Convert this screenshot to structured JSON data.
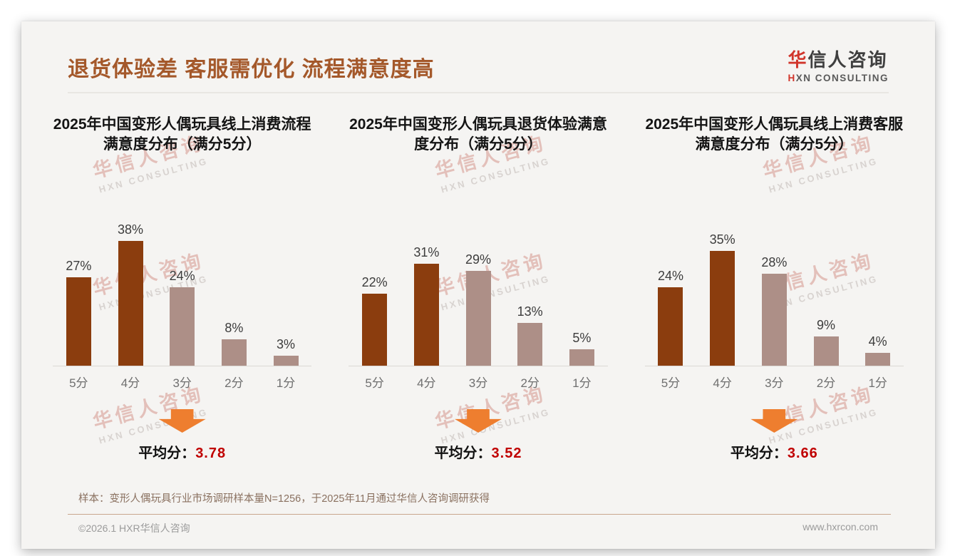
{
  "page": {
    "title": "退货体验差 客服需优化 流程满意度高",
    "logo": {
      "cn_first": "华",
      "cn_rest": "信人咨询",
      "en_first": "H",
      "en_rest": "XN CONSULTING"
    },
    "watermark": {
      "line1": "华信人咨询",
      "line2": "HXN CONSULTING"
    },
    "average_label": "平均分：",
    "footnote": "样本：变形人偶玩具行业市场调研样本量N=1256，于2025年11月通过华信人咨询调研获得",
    "copyright": "©2026.1 HXR华信人咨询",
    "website": "www.hxrcon.com"
  },
  "colors": {
    "title_brown": "#A4582A",
    "bar_dark": "#8B3D0E",
    "bar_light": "#AD8F87",
    "arrow_orange": "#EE7E2F",
    "average_red": "#C00000",
    "logo_red": "#D1352B",
    "card_background": "#F5F4F2"
  },
  "chart_data": [
    {
      "type": "bar",
      "title": "2025年中国变形人偶玩具线上消费流程满意度分布（满分5分）",
      "categories": [
        "5分",
        "4分",
        "3分",
        "2分",
        "1分"
      ],
      "values": [
        27,
        38,
        24,
        8,
        3
      ],
      "unit": "%",
      "ylim": [
        0,
        40
      ],
      "grid": false,
      "bar_styles": [
        "dark",
        "dark",
        "light",
        "light",
        "light"
      ],
      "average": "3.78"
    },
    {
      "type": "bar",
      "title": "2025年中国变形人偶玩具退货体验满意度分布（满分5分）",
      "categories": [
        "5分",
        "4分",
        "3分",
        "2分",
        "1分"
      ],
      "values": [
        22,
        31,
        29,
        13,
        5
      ],
      "unit": "%",
      "ylim": [
        0,
        40
      ],
      "grid": false,
      "bar_styles": [
        "dark",
        "dark",
        "light",
        "light",
        "light"
      ],
      "average": "3.52"
    },
    {
      "type": "bar",
      "title": "2025年中国变形人偶玩具线上消费客服满意度分布（满分5分）",
      "categories": [
        "5分",
        "4分",
        "3分",
        "2分",
        "1分"
      ],
      "values": [
        24,
        35,
        28,
        9,
        4
      ],
      "unit": "%",
      "ylim": [
        0,
        40
      ],
      "grid": false,
      "bar_styles": [
        "dark",
        "dark",
        "light",
        "light",
        "light"
      ],
      "average": "3.66"
    }
  ]
}
